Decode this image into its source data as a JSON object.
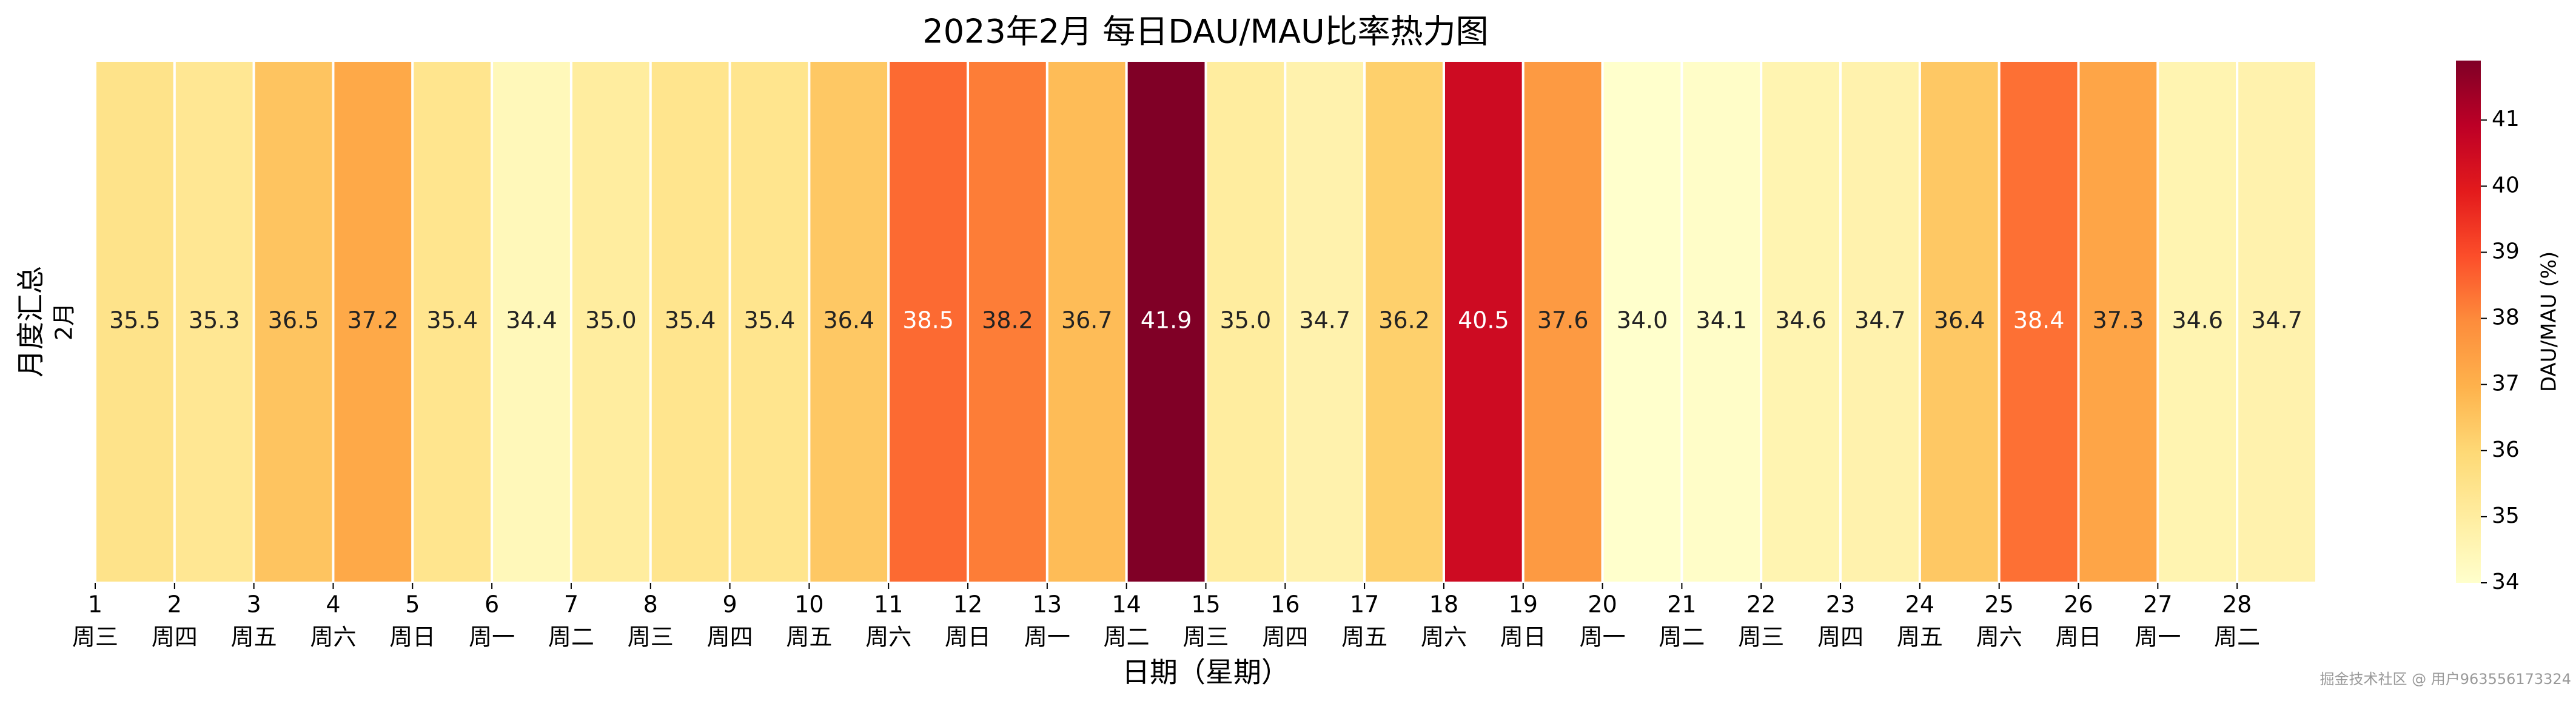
{
  "chart_data": {
    "type": "heatmap",
    "title": "2023年2月 每日DAU/MAU比率热力图",
    "xlabel": "日期（星期）",
    "ylabel": "月度汇总",
    "row": "2月",
    "categories": [
      "1",
      "2",
      "3",
      "4",
      "5",
      "6",
      "7",
      "8",
      "9",
      "10",
      "11",
      "12",
      "13",
      "14",
      "15",
      "16",
      "17",
      "18",
      "19",
      "20",
      "21",
      "22",
      "23",
      "24",
      "25",
      "26",
      "27",
      "28"
    ],
    "weekdays": [
      "周三",
      "周四",
      "周五",
      "周六",
      "周日",
      "周一",
      "周二",
      "周三",
      "周四",
      "周五",
      "周六",
      "周日",
      "周一",
      "周二",
      "周三",
      "周四",
      "周五",
      "周六",
      "周日",
      "周一",
      "周二",
      "周三",
      "周四",
      "周五",
      "周六",
      "周日",
      "周一",
      "周二"
    ],
    "values": [
      35.5,
      35.3,
      36.5,
      37.2,
      35.4,
      34.4,
      35.0,
      35.4,
      35.4,
      36.4,
      38.5,
      38.2,
      36.7,
      41.9,
      35.0,
      34.7,
      36.2,
      40.5,
      37.6,
      34.0,
      34.1,
      34.6,
      34.7,
      36.4,
      38.4,
      37.3,
      34.6,
      34.7
    ],
    "value_labels": [
      "35.5",
      "35.3",
      "36.5",
      "37.2",
      "35.4",
      "34.4",
      "35.0",
      "35.4",
      "35.4",
      "36.4",
      "38.5",
      "38.2",
      "36.7",
      "41.9",
      "35.0",
      "34.7",
      "36.2",
      "40.5",
      "37.6",
      "34.0",
      "34.1",
      "34.6",
      "34.7",
      "36.4",
      "38.4",
      "37.3",
      "34.6",
      "34.7"
    ],
    "colormap": "YlOrRd",
    "colorbar_label": "DAU/MAU (%)",
    "clim": [
      34.0,
      41.9
    ],
    "cticks": [
      34,
      35,
      36,
      37,
      38,
      39,
      40,
      41
    ],
    "watermark": "掘金技术社区 @ 用户963556173324"
  }
}
